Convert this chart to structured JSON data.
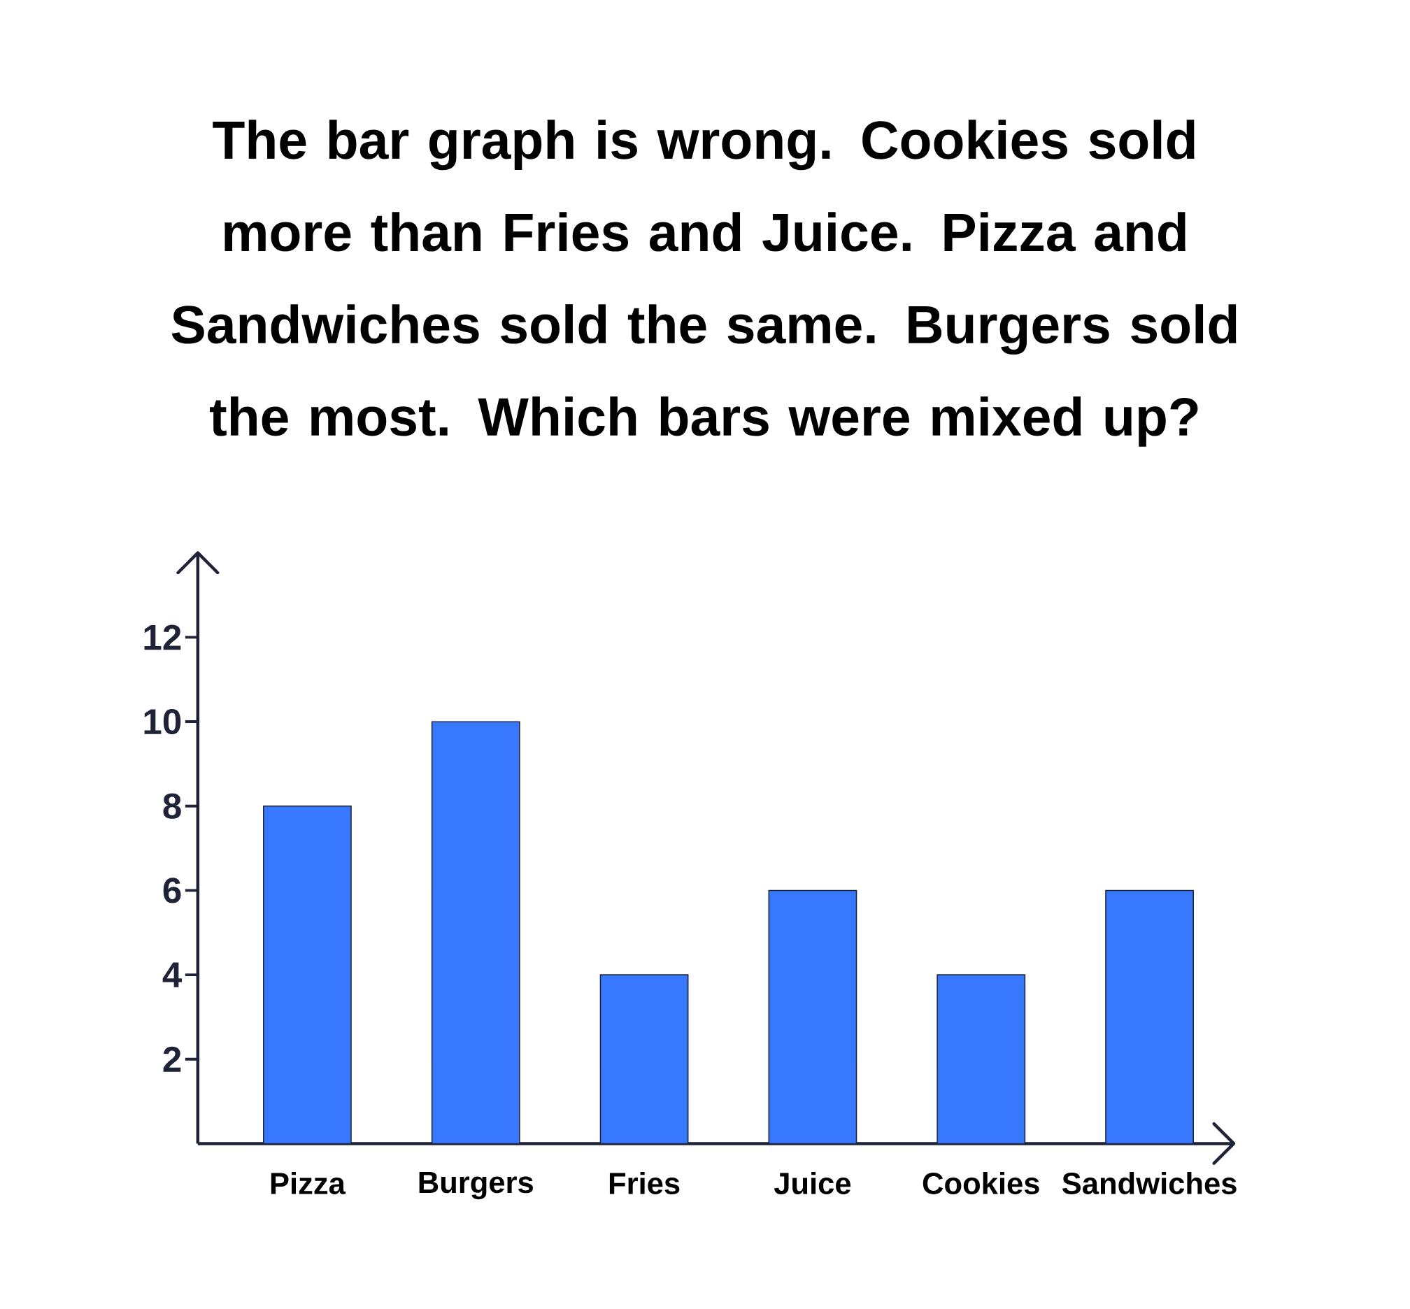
{
  "chart_data": {
    "type": "bar",
    "title": "The bar graph is wrong. Cookies sold more than Fries and Juice. Pizza and Sandwiches sold the same. Burgers sold the most. Which bars were mixed up?",
    "categories": [
      "Pizza",
      "Burgers",
      "Fries",
      "Juice",
      "Cookies",
      "Sandwiches"
    ],
    "values": [
      8,
      10,
      4,
      6,
      4,
      6
    ],
    "color": "#3878fc",
    "ylim": [
      0,
      14
    ],
    "yticks": [
      2,
      4,
      6,
      8,
      10,
      12
    ]
  }
}
